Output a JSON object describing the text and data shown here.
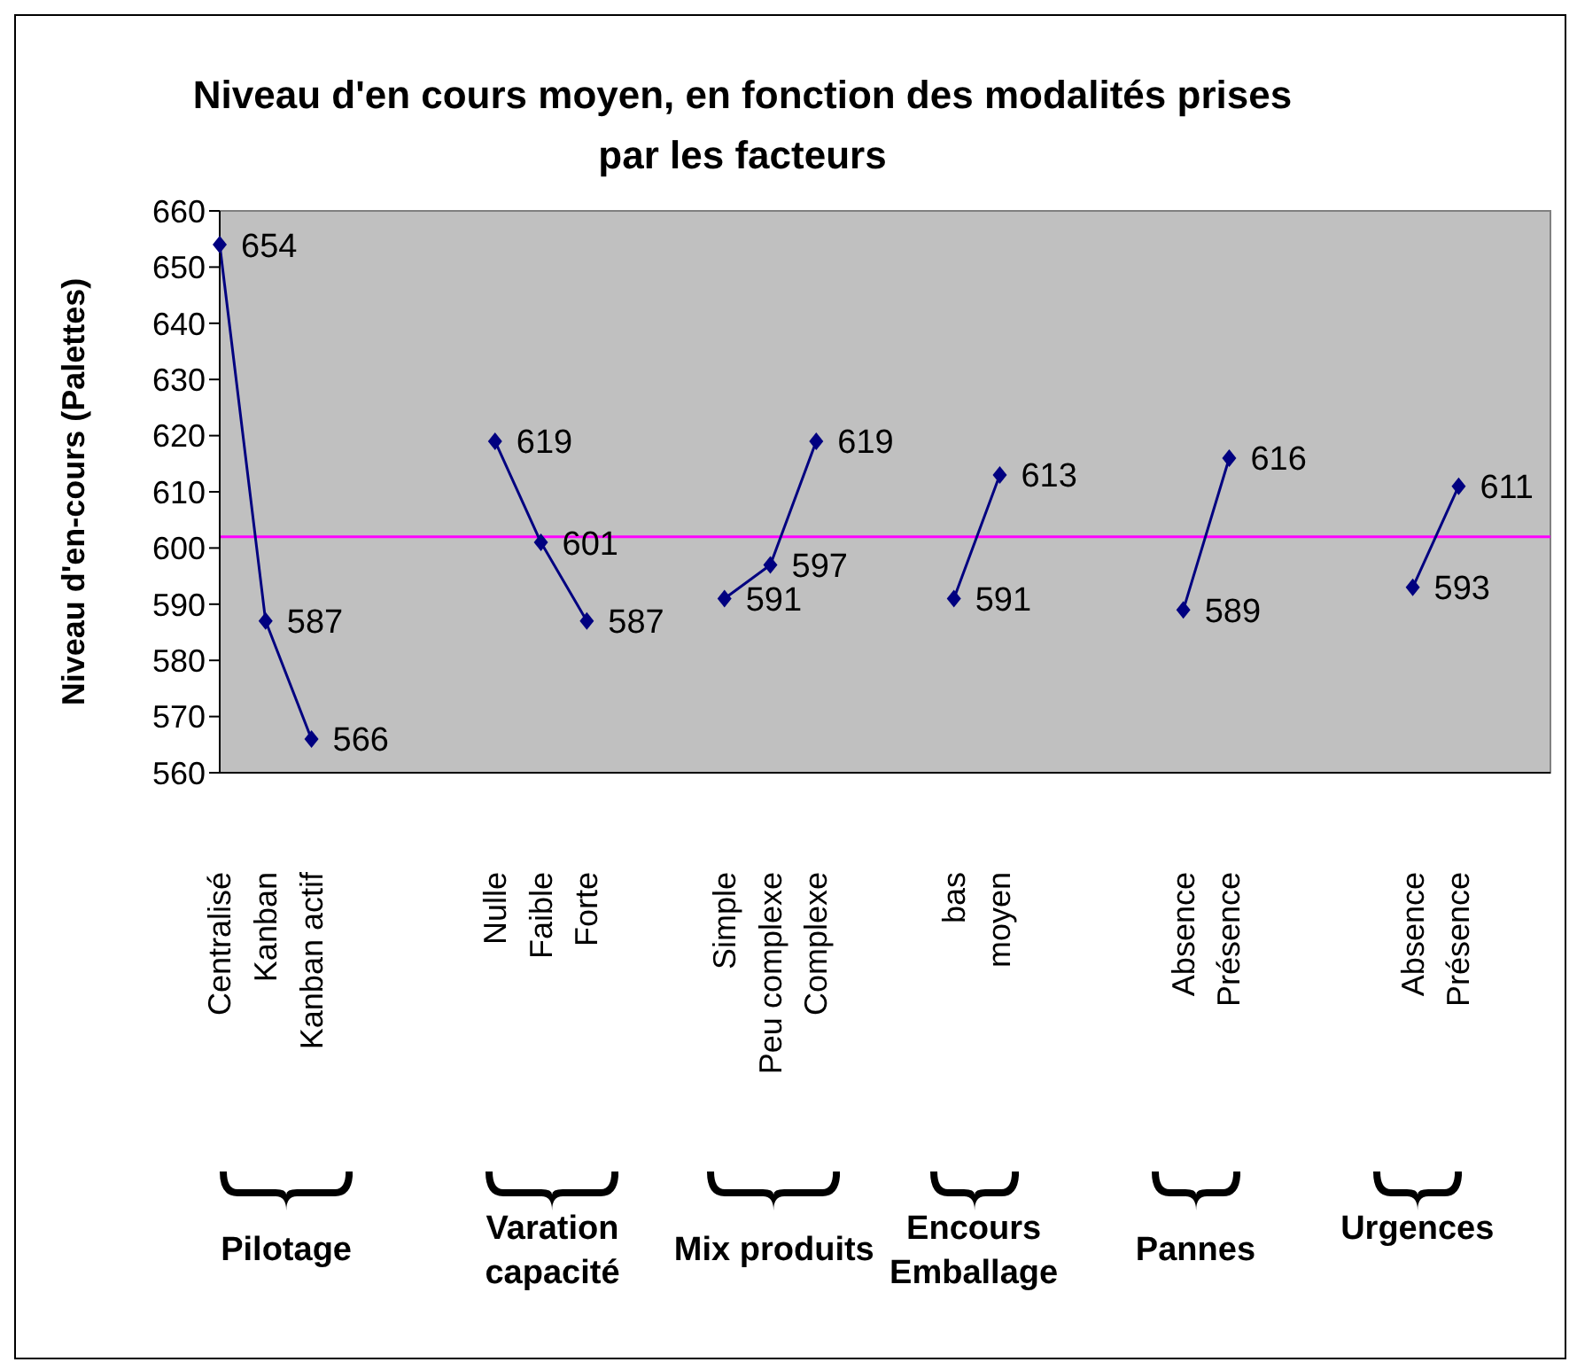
{
  "chart_data": {
    "type": "line",
    "title": "Niveau d'en cours moyen, en fonction des modalités prises par les facteurs",
    "ylabel": "Niveau d'en-cours (Palettes)",
    "categories": [
      "Centralisé",
      "Kanban",
      "Kanban actif",
      null,
      null,
      null,
      "Nulle",
      "Faible",
      "Forte",
      null,
      null,
      "Simple",
      "Peu complexe",
      "Complexe",
      null,
      null,
      "bas",
      "moyen",
      null,
      null,
      null,
      "Absence",
      "Présence",
      null,
      null,
      null,
      "Absence",
      "Présence",
      null,
      null
    ],
    "series": [
      {
        "color": "#000080",
        "values": [
          654,
          587,
          566,
          null,
          null,
          null,
          619,
          601,
          587,
          null,
          null,
          591,
          597,
          619,
          null,
          null,
          591,
          613,
          null,
          null,
          null,
          589,
          616,
          null,
          null,
          null,
          593,
          611,
          null,
          null
        ]
      }
    ],
    "ylim": [
      560,
      660
    ],
    "yticks": [
      560,
      570,
      580,
      590,
      600,
      610,
      620,
      630,
      640,
      650,
      660
    ],
    "ref_lines": [
      {
        "axis": "y",
        "value": 602,
        "color": "#ff00ff"
      }
    ],
    "annotations": [
      "Pilotage",
      "Varation capacité",
      "Mix produits",
      "Encours Emballage",
      "Pannes",
      "Urgences"
    ],
    "data_labels": true,
    "marker": "diamond"
  }
}
